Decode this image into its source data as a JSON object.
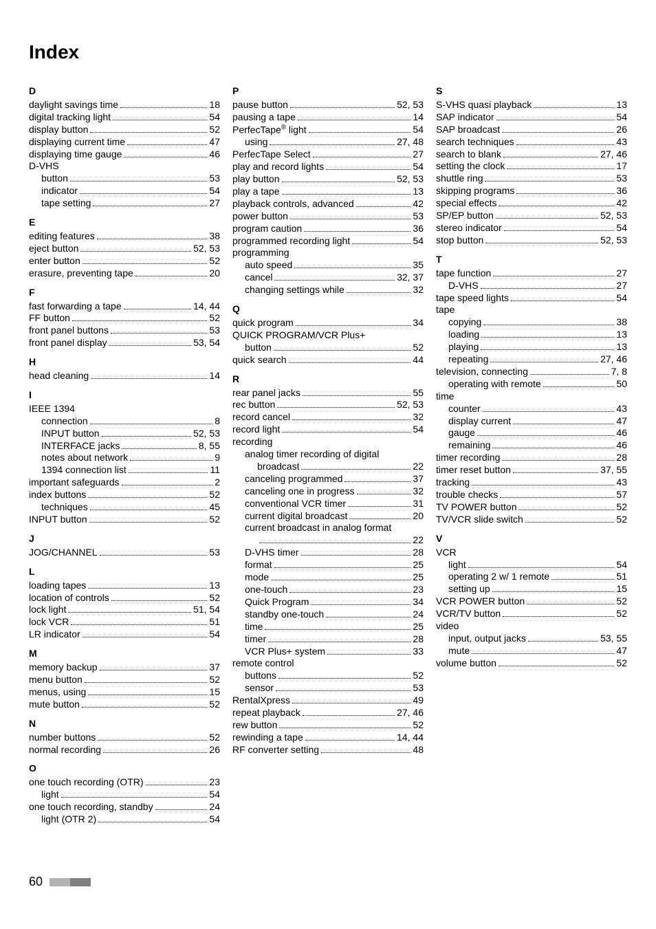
{
  "title": "Index",
  "page_number": "60",
  "footer_bar_colors": [
    "#b3b3b3",
    "#808080"
  ],
  "columns": [
    [
      {
        "type": "letter",
        "text": "D"
      },
      {
        "type": "entry",
        "label": "daylight savings time",
        "pages": "18"
      },
      {
        "type": "entry",
        "label": "digital tracking light",
        "pages": "54"
      },
      {
        "type": "entry",
        "label": "display button",
        "pages": "52"
      },
      {
        "type": "entry",
        "label": "displaying current time",
        "pages": "47"
      },
      {
        "type": "entry",
        "label": "displaying time gauge",
        "pages": "46"
      },
      {
        "type": "heading",
        "label": "D-VHS"
      },
      {
        "type": "entry",
        "indent": 1,
        "label": "button",
        "pages": "53"
      },
      {
        "type": "entry",
        "indent": 1,
        "label": "indicator",
        "pages": "54"
      },
      {
        "type": "entry",
        "indent": 1,
        "label": "tape setting",
        "pages": "27"
      },
      {
        "type": "letter",
        "text": "E"
      },
      {
        "type": "entry",
        "label": "editing features",
        "pages": "38"
      },
      {
        "type": "entry",
        "label": "eject button",
        "pages": "52, 53"
      },
      {
        "type": "entry",
        "label": "enter button",
        "pages": "52"
      },
      {
        "type": "entry",
        "label": "erasure, preventing tape",
        "pages": "20"
      },
      {
        "type": "letter",
        "text": "F"
      },
      {
        "type": "entry",
        "label": "fast forwarding a tape",
        "pages": "14, 44"
      },
      {
        "type": "entry",
        "label": "FF button",
        "pages": "52"
      },
      {
        "type": "entry",
        "label": "front panel buttons",
        "pages": "53"
      },
      {
        "type": "entry",
        "label": "front panel display",
        "pages": "53, 54"
      },
      {
        "type": "letter",
        "text": "H"
      },
      {
        "type": "entry",
        "label": "head cleaning",
        "pages": "14"
      },
      {
        "type": "letter",
        "text": "I"
      },
      {
        "type": "heading",
        "label": "IEEE 1394"
      },
      {
        "type": "entry",
        "indent": 1,
        "label": "connection",
        "pages": "8"
      },
      {
        "type": "entry",
        "indent": 1,
        "label": "INPUT button",
        "pages": "52, 53"
      },
      {
        "type": "entry",
        "indent": 1,
        "label": "INTERFACE jacks",
        "pages": "8, 55"
      },
      {
        "type": "entry",
        "indent": 1,
        "label": "notes about network",
        "pages": "9"
      },
      {
        "type": "entry",
        "indent": 1,
        "label": "1394 connection list",
        "pages": "11"
      },
      {
        "type": "entry",
        "label": "important safeguards",
        "pages": "2"
      },
      {
        "type": "entry",
        "label": "index buttons",
        "pages": "52"
      },
      {
        "type": "entry",
        "indent": 1,
        "label": "techniques",
        "pages": "45"
      },
      {
        "type": "entry",
        "label": "INPUT button",
        "pages": "52"
      },
      {
        "type": "letter",
        "text": "J"
      },
      {
        "type": "entry",
        "label": "JOG/CHANNEL",
        "pages": "53"
      },
      {
        "type": "letter",
        "text": "L"
      },
      {
        "type": "entry",
        "label": "loading tapes",
        "pages": "13"
      },
      {
        "type": "entry",
        "label": "location of controls",
        "pages": "52"
      },
      {
        "type": "entry",
        "label": "lock light",
        "pages": "51, 54"
      },
      {
        "type": "entry",
        "label": "lock VCR",
        "pages": "51"
      },
      {
        "type": "entry",
        "label": "LR indicator",
        "pages": "54"
      },
      {
        "type": "letter",
        "text": "M"
      },
      {
        "type": "entry",
        "label": "memory backup",
        "pages": "37"
      },
      {
        "type": "entry",
        "label": "menu button",
        "pages": "52"
      },
      {
        "type": "entry",
        "label": "menus, using",
        "pages": "15"
      },
      {
        "type": "entry",
        "label": "mute button",
        "pages": "52"
      },
      {
        "type": "letter",
        "text": "N"
      },
      {
        "type": "entry",
        "label": "number buttons",
        "pages": "52"
      },
      {
        "type": "entry",
        "label": "normal recording",
        "pages": "26"
      },
      {
        "type": "letter",
        "text": "O"
      },
      {
        "type": "entry",
        "label": "one touch recording (OTR)",
        "pages": "23"
      },
      {
        "type": "entry",
        "indent": 1,
        "label": "light",
        "pages": "54"
      },
      {
        "type": "entry",
        "label": "one touch recording, standby",
        "pages": "24"
      },
      {
        "type": "entry",
        "indent": 1,
        "label": "light (OTR 2)",
        "pages": "54"
      }
    ],
    [
      {
        "type": "letter",
        "text": "P"
      },
      {
        "type": "entry",
        "label": "pause button",
        "pages": "52, 53"
      },
      {
        "type": "entry",
        "label": "pausing a tape",
        "pages": "14"
      },
      {
        "type": "entry",
        "label_html": "PerfecTape<span class=\"sup\">®</span> light",
        "pages": "54"
      },
      {
        "type": "entry",
        "indent": 1,
        "label": "using",
        "pages": "27, 48"
      },
      {
        "type": "entry",
        "label": "PerfecTape Select",
        "pages": "27"
      },
      {
        "type": "entry",
        "label": "play and record lights",
        "pages": "54"
      },
      {
        "type": "entry",
        "label": "play button",
        "pages": "52, 53"
      },
      {
        "type": "entry",
        "label": "play a tape",
        "pages": "13"
      },
      {
        "type": "entry",
        "label": "playback controls, advanced",
        "pages": "42"
      },
      {
        "type": "entry",
        "label": "power button",
        "pages": "53"
      },
      {
        "type": "entry",
        "label": "program caution",
        "pages": "36"
      },
      {
        "type": "entry",
        "label": "programmed recording light",
        "pages": "54"
      },
      {
        "type": "heading",
        "label": "programming"
      },
      {
        "type": "entry",
        "indent": 1,
        "label": "auto speed",
        "pages": "35"
      },
      {
        "type": "entry",
        "indent": 1,
        "label": "cancel",
        "pages": "32, 37"
      },
      {
        "type": "entry",
        "indent": 1,
        "label": "changing settings while",
        "pages": "32"
      },
      {
        "type": "letter",
        "text": "Q"
      },
      {
        "type": "entry",
        "label": "quick program",
        "pages": "34"
      },
      {
        "type": "heading",
        "label": "QUICK PROGRAM/VCR Plus+"
      },
      {
        "type": "entry",
        "indent": 1,
        "label": "button",
        "pages": "52"
      },
      {
        "type": "entry",
        "label": "quick search",
        "pages": "44"
      },
      {
        "type": "letter",
        "text": "R"
      },
      {
        "type": "entry",
        "label": "rear panel jacks",
        "pages": "55"
      },
      {
        "type": "entry",
        "label": "rec button",
        "pages": "52, 53"
      },
      {
        "type": "entry",
        "label": "record cancel",
        "pages": "32"
      },
      {
        "type": "entry",
        "label": "record light",
        "pages": "54"
      },
      {
        "type": "heading",
        "label": "recording"
      },
      {
        "type": "heading",
        "indent": 1,
        "label": "analog timer recording of digital"
      },
      {
        "type": "entry",
        "indent": 2,
        "label": "broadcast",
        "pages": "22"
      },
      {
        "type": "entry",
        "indent": 1,
        "label": "canceling programmed",
        "pages": "37"
      },
      {
        "type": "entry",
        "indent": 1,
        "label": "canceling one in progress",
        "pages": "32"
      },
      {
        "type": "entry",
        "indent": 1,
        "label": "conventional VCR timer",
        "pages": "31"
      },
      {
        "type": "entry",
        "indent": 1,
        "label": "current digital broadcast",
        "pages": "20"
      },
      {
        "type": "heading",
        "indent": 1,
        "label": "current broadcast in analog format"
      },
      {
        "type": "entry",
        "indent": 2,
        "label": "",
        "pages": "22"
      },
      {
        "type": "entry",
        "indent": 1,
        "label": "D-VHS timer",
        "pages": "28"
      },
      {
        "type": "entry",
        "indent": 1,
        "label": "format",
        "pages": "25"
      },
      {
        "type": "entry",
        "indent": 1,
        "label": "mode",
        "pages": "25"
      },
      {
        "type": "entry",
        "indent": 1,
        "label": "one-touch",
        "pages": "23"
      },
      {
        "type": "entry",
        "indent": 1,
        "label": "Quick Program",
        "pages": "34"
      },
      {
        "type": "entry",
        "indent": 1,
        "label": "standby one-touch",
        "pages": "24"
      },
      {
        "type": "entry",
        "indent": 1,
        "label": "time",
        "pages": "25"
      },
      {
        "type": "entry",
        "indent": 1,
        "label": "timer",
        "pages": "28"
      },
      {
        "type": "entry",
        "indent": 1,
        "label": "VCR Plus+ system",
        "pages": "33"
      },
      {
        "type": "heading",
        "label": "remote control"
      },
      {
        "type": "entry",
        "indent": 1,
        "label": "buttons",
        "pages": "52"
      },
      {
        "type": "entry",
        "indent": 1,
        "label": "sensor",
        "pages": "53"
      },
      {
        "type": "entry",
        "label": "RentalXpress",
        "pages": "49"
      },
      {
        "type": "entry",
        "label": "repeat playback",
        "pages": "27, 46"
      },
      {
        "type": "entry",
        "label": "rew button",
        "pages": "52"
      },
      {
        "type": "entry",
        "label": "rewinding a tape",
        "pages": "14, 44"
      },
      {
        "type": "entry",
        "label": "RF converter setting",
        "pages": "48"
      }
    ],
    [
      {
        "type": "letter",
        "text": "S"
      },
      {
        "type": "entry",
        "label": "S-VHS quasi playback",
        "pages": "13"
      },
      {
        "type": "entry",
        "label": "SAP indicator",
        "pages": "54"
      },
      {
        "type": "entry",
        "label": "SAP broadcast",
        "pages": "26"
      },
      {
        "type": "entry",
        "label": "search techniques",
        "pages": "43"
      },
      {
        "type": "entry",
        "label": "search to blank",
        "pages": "27, 46"
      },
      {
        "type": "entry",
        "label": "setting the clock",
        "pages": "17"
      },
      {
        "type": "entry",
        "label": "shuttle ring",
        "pages": "53"
      },
      {
        "type": "entry",
        "label": "skipping programs",
        "pages": "36"
      },
      {
        "type": "entry",
        "label": "special effects",
        "pages": "42"
      },
      {
        "type": "entry",
        "label": "SP/EP button",
        "pages": "52, 53"
      },
      {
        "type": "entry",
        "label": "stereo indicator",
        "pages": "54"
      },
      {
        "type": "entry",
        "label": "stop button",
        "pages": "52, 53"
      },
      {
        "type": "letter",
        "text": "T"
      },
      {
        "type": "entry",
        "label": "tape function",
        "pages": "27"
      },
      {
        "type": "entry",
        "indent": 1,
        "label": "D-VHS",
        "pages": "27"
      },
      {
        "type": "entry",
        "label": "tape speed lights",
        "pages": "54"
      },
      {
        "type": "heading",
        "label": "tape"
      },
      {
        "type": "entry",
        "indent": 1,
        "label": "copying",
        "pages": "38"
      },
      {
        "type": "entry",
        "indent": 1,
        "label": "loading",
        "pages": "13"
      },
      {
        "type": "entry",
        "indent": 1,
        "label": "playing",
        "pages": "13"
      },
      {
        "type": "entry",
        "indent": 1,
        "label": "repeating",
        "pages": "27, 46"
      },
      {
        "type": "entry",
        "label": "television, connecting",
        "pages": "7, 8"
      },
      {
        "type": "entry",
        "indent": 1,
        "label": "operating with remote",
        "pages": "50"
      },
      {
        "type": "heading",
        "label": "time"
      },
      {
        "type": "entry",
        "indent": 1,
        "label": "counter",
        "pages": "43"
      },
      {
        "type": "entry",
        "indent": 1,
        "label": "display current",
        "pages": "47"
      },
      {
        "type": "entry",
        "indent": 1,
        "label": "gauge",
        "pages": "46"
      },
      {
        "type": "entry",
        "indent": 1,
        "label": "remaining",
        "pages": "46"
      },
      {
        "type": "entry",
        "label": "timer recording",
        "pages": "28"
      },
      {
        "type": "entry",
        "label": "timer reset button",
        "pages": "37, 55"
      },
      {
        "type": "entry",
        "label": "tracking",
        "pages": "43"
      },
      {
        "type": "entry",
        "label": "trouble checks",
        "pages": "57"
      },
      {
        "type": "entry",
        "label": "TV POWER button",
        "pages": "52"
      },
      {
        "type": "entry",
        "label": "TV/VCR slide switch",
        "pages": "52"
      },
      {
        "type": "letter",
        "text": "V"
      },
      {
        "type": "heading",
        "label": "VCR"
      },
      {
        "type": "entry",
        "indent": 1,
        "label": "light",
        "pages": "54"
      },
      {
        "type": "entry",
        "indent": 1,
        "label": "operating 2 w/ 1 remote",
        "pages": "51"
      },
      {
        "type": "entry",
        "indent": 1,
        "label": "setting up",
        "pages": "15"
      },
      {
        "type": "entry",
        "label": "VCR POWER button",
        "pages": "52"
      },
      {
        "type": "entry",
        "label": "VCR/TV button",
        "pages": "52"
      },
      {
        "type": "heading",
        "label": "video"
      },
      {
        "type": "entry",
        "indent": 1,
        "label": "input, output jacks",
        "pages": "53, 55"
      },
      {
        "type": "entry",
        "indent": 1,
        "label": "mute",
        "pages": "47"
      },
      {
        "type": "entry",
        "label": "volume button",
        "pages": "52"
      }
    ]
  ]
}
